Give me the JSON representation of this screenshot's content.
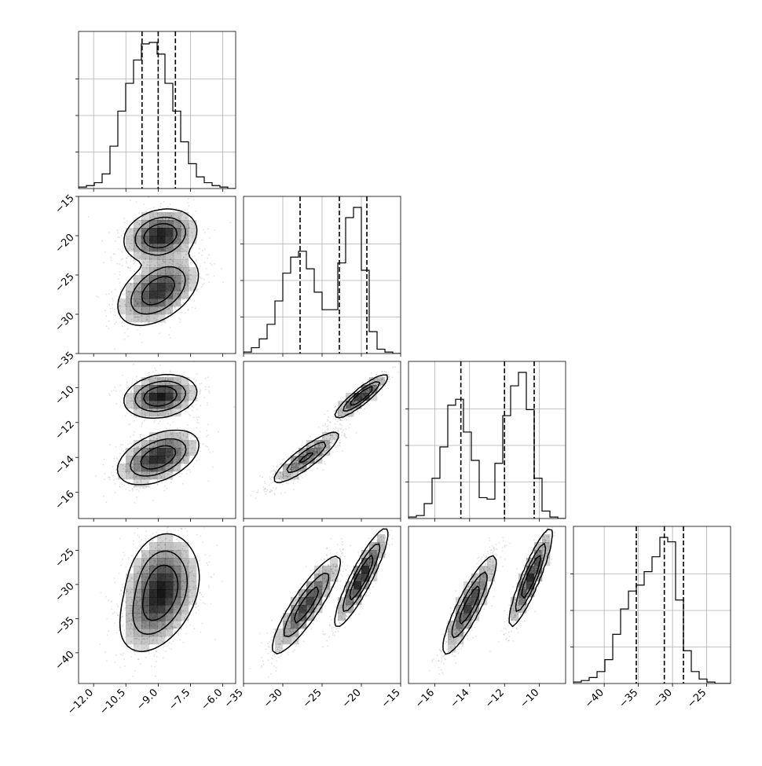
{
  "chart_data": {
    "type": "corner",
    "parameters": [
      {
        "ticks": [
          -12.0,
          -10.5,
          -9.0,
          -7.5,
          -6.0
        ],
        "tick_labels": [
          "−12.0",
          "−10.5",
          "−9.0",
          "−7.5",
          "−6.0"
        ],
        "range": [
          -12.7,
          -5.4
        ],
        "quantiles": [
          -9.75,
          -9.0,
          -8.2
        ],
        "histogram": [
          0.01,
          0.02,
          0.04,
          0.1,
          0.29,
          0.53,
          0.72,
          0.88,
          0.99,
          1.0,
          0.92,
          0.72,
          0.53,
          0.32,
          0.17,
          0.08,
          0.04,
          0.02,
          0.01,
          0.0
        ]
      },
      {
        "ticks": [
          -35,
          -30,
          -25,
          -20,
          -15
        ],
        "tick_labels": [
          "−35",
          "−30",
          "−25",
          "−20",
          "−15"
        ],
        "range": [
          -35,
          -15
        ],
        "quantiles": [
          -27.8,
          -22.8,
          -19.3
        ],
        "histogram": [
          0.01,
          0.04,
          0.1,
          0.2,
          0.36,
          0.55,
          0.66,
          0.7,
          0.58,
          0.42,
          0.3,
          0.3,
          0.62,
          0.93,
          1.0,
          0.57,
          0.15,
          0.03,
          0.01,
          0.0
        ]
      },
      {
        "ticks": [
          -16,
          -14,
          -12,
          -10
        ],
        "tick_labels": [
          "−16",
          "−14",
          "−12",
          "−10"
        ],
        "range": [
          -17.5,
          -8.5
        ],
        "quantiles": [
          -14.5,
          -12.0,
          -10.3
        ],
        "histogram": [
          0.01,
          0.02,
          0.1,
          0.27,
          0.48,
          0.76,
          0.8,
          0.58,
          0.39,
          0.14,
          0.13,
          0.37,
          0.69,
          0.89,
          0.98,
          0.73,
          0.27,
          0.05,
          0.01,
          0.0
        ]
      },
      {
        "ticks": [
          -40,
          -35,
          -30,
          -25
        ],
        "tick_labels": [
          "−40",
          "−35",
          "−30",
          "−25"
        ],
        "range": [
          -44.5,
          -21.5
        ],
        "quantiles": [
          -35.3,
          -31.2,
          -28.4
        ],
        "histogram": [
          0.01,
          0.02,
          0.04,
          0.08,
          0.16,
          0.33,
          0.5,
          0.62,
          0.66,
          0.75,
          0.85,
          0.98,
          0.95,
          0.56,
          0.22,
          0.08,
          0.03,
          0.01,
          0.0,
          0.0
        ]
      }
    ],
    "joint_modes": [
      {
        "p": [
          -8.9,
          -20.0,
          -10.5,
          -29.0
        ],
        "s": [
          0.75,
          1.5,
          0.55,
          3.2
        ],
        "w": 0.45,
        "rho": {
          "0-1": 0.2,
          "0-2": 0.2,
          "0-3": 0.2,
          "1-2": 0.9,
          "1-3": 0.9,
          "2-3": 0.9
        }
      },
      {
        "p": [
          -9.0,
          -27.0,
          -14.0,
          -33.0
        ],
        "s": [
          0.85,
          2.0,
          0.7,
          3.3
        ],
        "w": 0.55,
        "rho": {
          "0-1": 0.45,
          "0-2": 0.45,
          "0-3": 0.45,
          "1-2": 0.88,
          "1-3": 0.88,
          "2-3": 0.88
        }
      }
    ]
  }
}
